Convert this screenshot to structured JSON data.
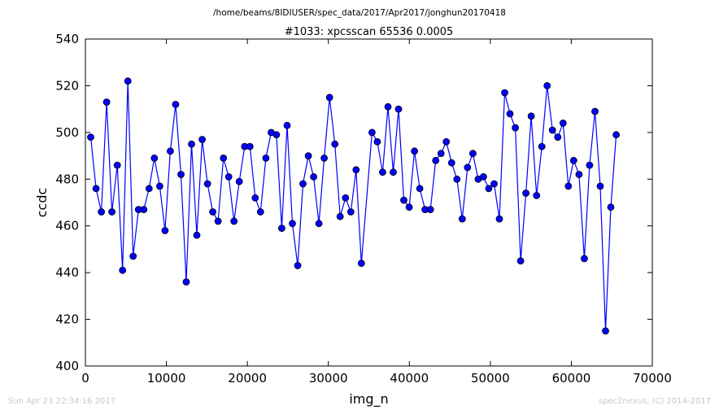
{
  "suptitle": "/home/beams/8IDIUSER/spec_data/2017/Apr2017/jonghun20170418",
  "footer": {
    "timestamp": "Sun Apr 23 22:34:16 2017",
    "credit": "spec2nexus, (C) 2014-2017"
  },
  "colors": {
    "line": "#0000ff",
    "marker_fill": "#0000ff",
    "marker_edge": "#000000"
  },
  "chart_data": {
    "type": "line",
    "title": "#1033: xpcsscan 65536 0.0005",
    "xlabel": "img_n",
    "ylabel": "ccdc",
    "xlim": [
      0,
      70000
    ],
    "ylim": [
      400,
      540
    ],
    "xticks": [
      0,
      10000,
      20000,
      30000,
      40000,
      50000,
      60000,
      70000
    ],
    "yticks": [
      400,
      420,
      440,
      460,
      480,
      500,
      520,
      540
    ],
    "grid": false,
    "legend": "none",
    "series": [
      {
        "x": [
          655,
          1311,
          1966,
          2621,
          3277,
          3932,
          4588,
          5243,
          5898,
          6554,
          7209,
          7864,
          8520,
          9175,
          9830,
          10486,
          11141,
          11796,
          12452,
          13107,
          13763,
          14418,
          15073,
          15729,
          16384,
          17039,
          17695,
          18350,
          19005,
          19661,
          20316,
          20972,
          21627,
          22282,
          22938,
          23593,
          24248,
          24904,
          25559,
          26214,
          26870,
          27525,
          28180,
          28836,
          29491,
          30147,
          30802,
          31457,
          32113,
          32768,
          33423,
          34079,
          35390,
          36045,
          36700,
          37356,
          38011,
          38666,
          39322,
          39977,
          40632,
          41288,
          41943,
          42598,
          43254,
          43909,
          44565,
          45220,
          45875,
          46531,
          47186,
          47841,
          48497,
          49152,
          49807,
          50463,
          51118,
          51774,
          52429,
          53084,
          53740,
          54395,
          55050,
          55706,
          56361,
          57016,
          57672,
          58327,
          58982,
          59638,
          60293,
          60949,
          61604,
          62259,
          62915,
          63570,
          64225,
          64881,
          65536
        ],
        "y": [
          498,
          476,
          466,
          513,
          466,
          486,
          441,
          522,
          447,
          467,
          467,
          476,
          489,
          477,
          458,
          492,
          512,
          482,
          436,
          495,
          456,
          497,
          478,
          466,
          462,
          489,
          481,
          462,
          479,
          494,
          494,
          472,
          466,
          489,
          500,
          499,
          459,
          503,
          461,
          443,
          478,
          490,
          481,
          461,
          489,
          515,
          495,
          464,
          472,
          466,
          484,
          444,
          500,
          496,
          483,
          511,
          483,
          510,
          471,
          468,
          492,
          476,
          467,
          467,
          488,
          491,
          496,
          487,
          480,
          463,
          485,
          491,
          480,
          481,
          476,
          478,
          463,
          517,
          508,
          502,
          445,
          474,
          507,
          473,
          494,
          520,
          501,
          498,
          504,
          477,
          488,
          482,
          446,
          486,
          509,
          477,
          415,
          468,
          499
        ]
      }
    ]
  }
}
